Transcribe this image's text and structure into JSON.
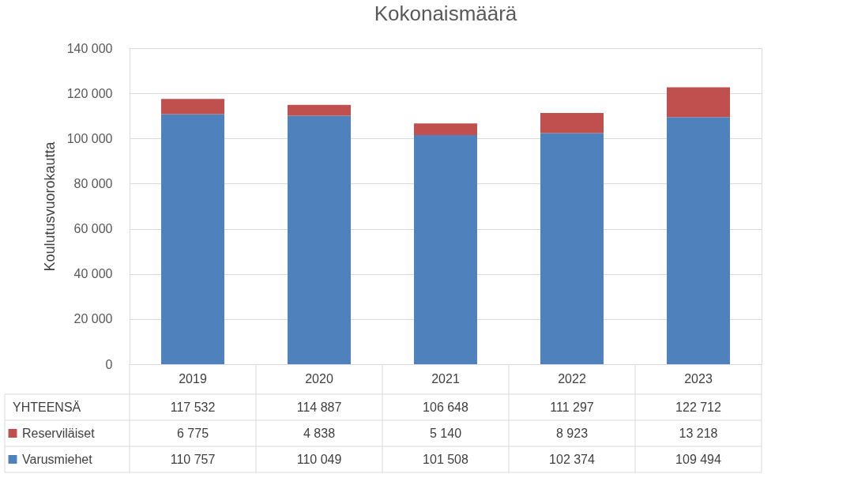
{
  "chart_data": {
    "type": "bar",
    "stacked": true,
    "title": "Kokonaismäärä",
    "ylabel": "Koulutusvuorokautta",
    "categories": [
      "2019",
      "2020",
      "2021",
      "2022",
      "2023"
    ],
    "series": [
      {
        "name": "Varusmiehet",
        "color": "#4f81bd",
        "values": [
          110757,
          110049,
          101508,
          102374,
          109494
        ],
        "value_labels": [
          "110 757",
          "110 049",
          "101 508",
          "102 374",
          "109 494"
        ]
      },
      {
        "name": "Reserviläiset",
        "color": "#c0504d",
        "values": [
          6775,
          4838,
          5140,
          8923,
          13218
        ],
        "value_labels": [
          "6 775",
          "4 838",
          "5 140",
          "8 923",
          "13 218"
        ]
      }
    ],
    "totals": [
      "117 532",
      "114 887",
      "106 648",
      "111 297",
      "122 712"
    ],
    "annotations": [
      "YHTEENSÄ"
    ],
    "ylim": [
      0,
      140000
    ],
    "yticks": [
      0,
      {
        "value": 20000,
        "label": "20 000"
      },
      {
        "value": 40000,
        "label": "40 000"
      },
      {
        "value": 60000,
        "label": "60 000"
      },
      {
        "value": 80000,
        "label": "80 000"
      },
      {
        "value": 100000,
        "label": "100 000"
      },
      {
        "value": 120000,
        "label": "120 000"
      },
      {
        "value": 140000,
        "label": "140 000"
      }
    ],
    "grid": "y",
    "legend": "bottom left"
  }
}
